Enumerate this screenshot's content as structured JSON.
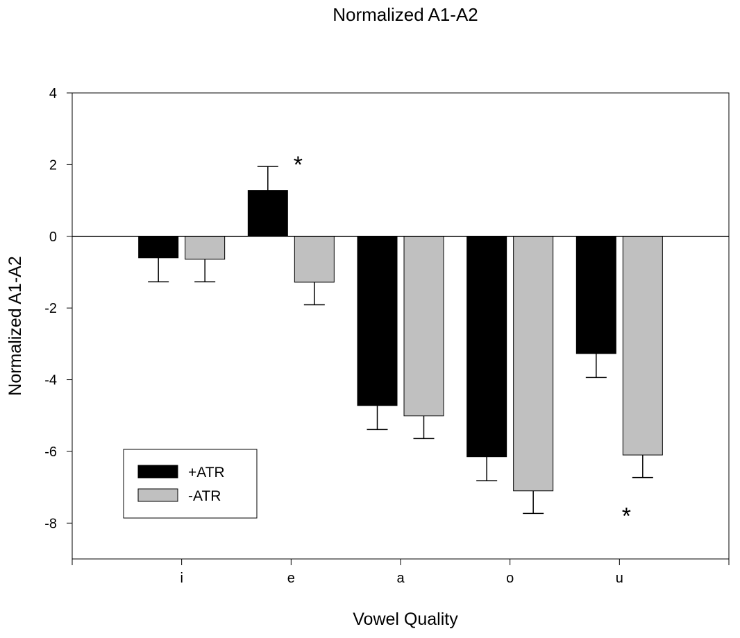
{
  "chart_data": {
    "type": "bar",
    "title": "Normalized A1-A2",
    "xlabel": "Vowel Quality",
    "ylabel": "Normalized A1-A2",
    "categories": [
      "i",
      "e",
      "a",
      "o",
      "u"
    ],
    "ylim": [
      -9,
      4
    ],
    "yticks": [
      4,
      2,
      0,
      -2,
      -4,
      -6,
      -8
    ],
    "ytick_labels": [
      "4",
      "2",
      "0",
      "-2",
      "-4",
      "-6",
      "-8"
    ],
    "grid": false,
    "legend_position": "bottom-left",
    "series": [
      {
        "name": "+ATR",
        "color": "#000000",
        "values": [
          -0.6,
          1.28,
          -4.72,
          -6.15,
          -3.27
        ],
        "error": [
          0.67,
          0.67,
          0.67,
          0.67,
          0.67
        ]
      },
      {
        "name": "-ATR",
        "color": "#c0c0c0",
        "values": [
          -0.64,
          -1.28,
          -5.01,
          -7.1,
          -6.1
        ],
        "error": [
          0.63,
          0.63,
          0.63,
          0.63,
          0.63
        ]
      }
    ],
    "annotations": [
      {
        "text": "*",
        "category": "e",
        "y": 2.2
      },
      {
        "text": "*",
        "category": "u",
        "y": -7.6
      }
    ]
  }
}
